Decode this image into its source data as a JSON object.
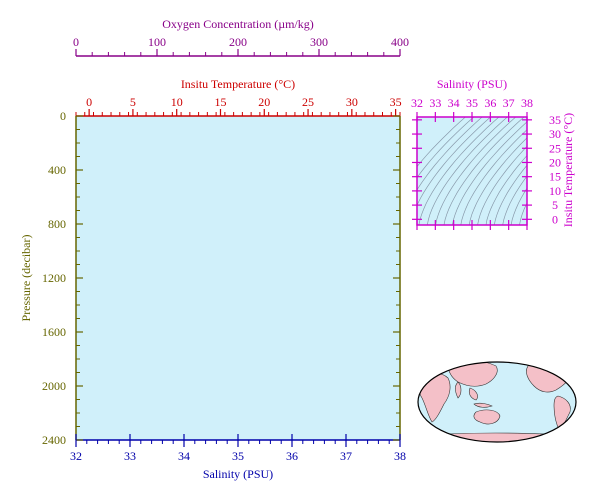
{
  "chart_data": [
    {
      "type": "line",
      "id": "main-profile",
      "colors": {
        "background": "#d0f0fa",
        "pressure": "#666600",
        "temperature": "#cc0000",
        "salinity": "#0000aa",
        "oxygen": "#880088"
      },
      "pressure_axis": {
        "label": "Pressure (decibar)",
        "range": [
          0,
          2400
        ],
        "inverted": true,
        "ticks": [
          "0",
          "400",
          "800",
          "1200",
          "1600",
          "2000",
          "2400"
        ],
        "tick_values": [
          0,
          400,
          800,
          1200,
          1600,
          2000,
          2400
        ]
      },
      "salinity_axis": {
        "label": "Salinity (PSU)",
        "range": [
          32,
          38
        ],
        "ticks": [
          "32",
          "33",
          "34",
          "35",
          "36",
          "37",
          "38"
        ],
        "tick_values": [
          32,
          33,
          34,
          35,
          36,
          37,
          38
        ]
      },
      "temperature_axis": {
        "label": "Insitu Temperature (°C)",
        "range": [
          -1.5,
          35.5
        ],
        "ticks": [
          "0",
          "5",
          "10",
          "15",
          "20",
          "25",
          "30",
          "35"
        ],
        "tick_values": [
          0,
          5,
          10,
          15,
          20,
          25,
          30,
          35
        ]
      },
      "oxygen_axis": {
        "label": "Oxygen Concentration (µm/kg)",
        "range": [
          0,
          400
        ],
        "ticks": [
          "0",
          "100",
          "200",
          "300",
          "400"
        ],
        "tick_values": [
          0,
          100,
          200,
          300,
          400
        ]
      },
      "series": []
    },
    {
      "type": "line",
      "id": "ts-diagram",
      "colors": {
        "background": "#d0f0fa",
        "axis": "#cc00cc",
        "contour": "#8899aa"
      },
      "salinity_axis": {
        "label": "Salinity (PSU)",
        "range": [
          32,
          38
        ],
        "ticks": [
          "32",
          "33",
          "34",
          "35",
          "36",
          "37",
          "38"
        ],
        "tick_values": [
          32,
          33,
          34,
          35,
          36,
          37,
          38
        ]
      },
      "temperature_axis": {
        "label": "Insitu Temperature (°C)",
        "range": [
          -2,
          36
        ],
        "ticks": [
          "0",
          "5",
          "10",
          "15",
          "20",
          "25",
          "30",
          "35"
        ],
        "tick_values": [
          0,
          5,
          10,
          15,
          20,
          25,
          30,
          35
        ]
      },
      "density_contours": 20
    }
  ],
  "world_map": {
    "ocean": "#d0f0fa",
    "land": "#f4c0c8"
  }
}
